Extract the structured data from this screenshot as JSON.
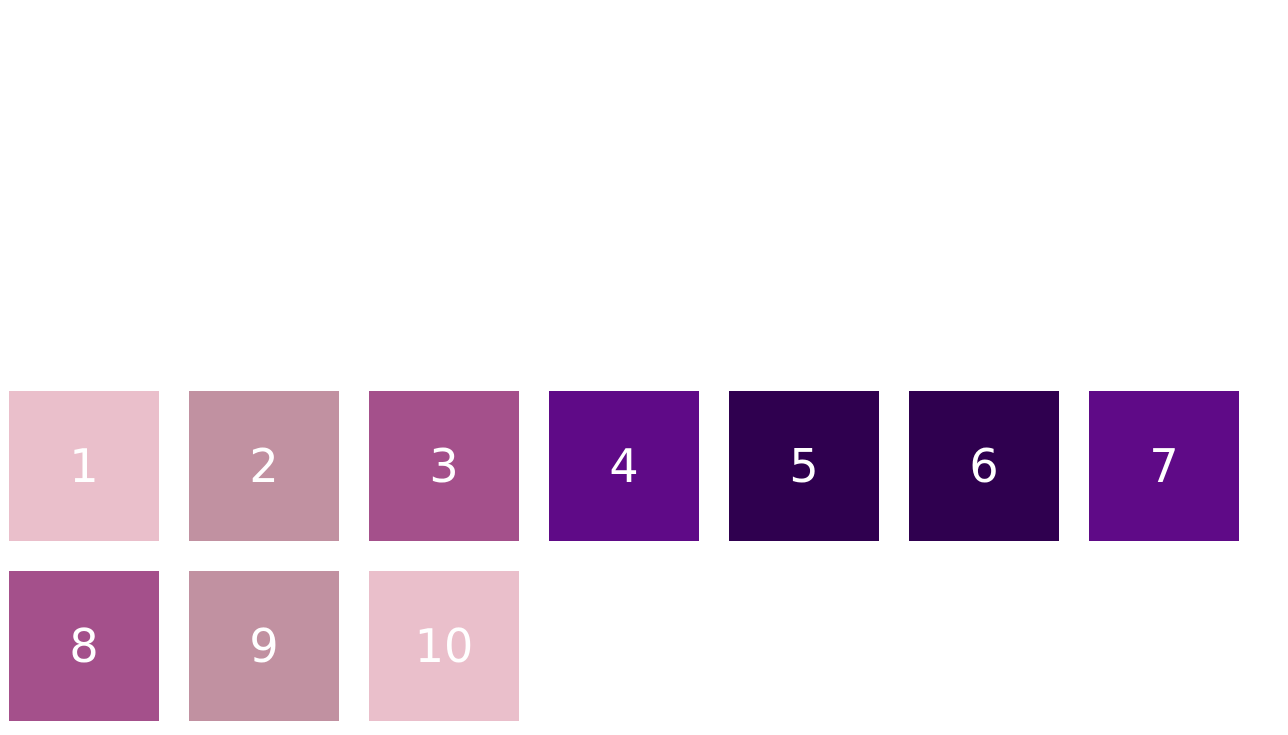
{
  "tiles": [
    {
      "label": "1"
    },
    {
      "label": "2"
    },
    {
      "label": "3"
    },
    {
      "label": "4"
    },
    {
      "label": "5"
    },
    {
      "label": "6"
    },
    {
      "label": "7"
    },
    {
      "label": "8"
    },
    {
      "label": "9"
    },
    {
      "label": "10"
    }
  ],
  "colors": {
    "light_pink": "#eabfcb",
    "dusty_rose": "#c191a1",
    "mauve": "#a4508b",
    "purple": "#5f0a87",
    "dark_purple": "#2f004f",
    "text": "#ffffff"
  }
}
